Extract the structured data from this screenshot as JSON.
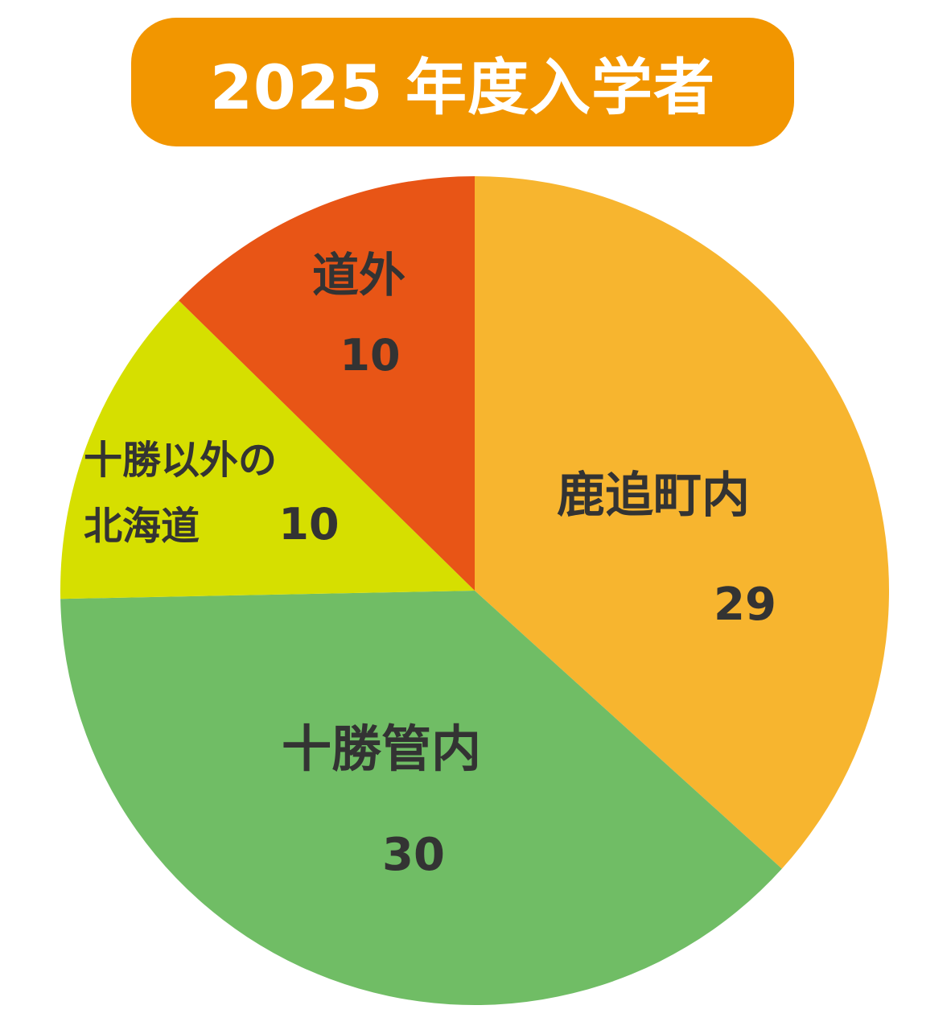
{
  "chart_data": {
    "type": "pie",
    "title": "2025 年度入学者",
    "slices": [
      {
        "label": "鹿追町内",
        "value": 29,
        "color": "#f7b52f"
      },
      {
        "label": "十勝管内",
        "value": 30,
        "color": "#70bd65"
      },
      {
        "label": "十勝以外の北海道",
        "label_lines": [
          "十勝以外の",
          "北海道"
        ],
        "value": 10,
        "color": "#d6df00"
      },
      {
        "label": "道外",
        "value": 10,
        "color": "#e85516"
      }
    ],
    "start_angle_deg": 0,
    "direction": "clockwise",
    "legend": "none"
  }
}
